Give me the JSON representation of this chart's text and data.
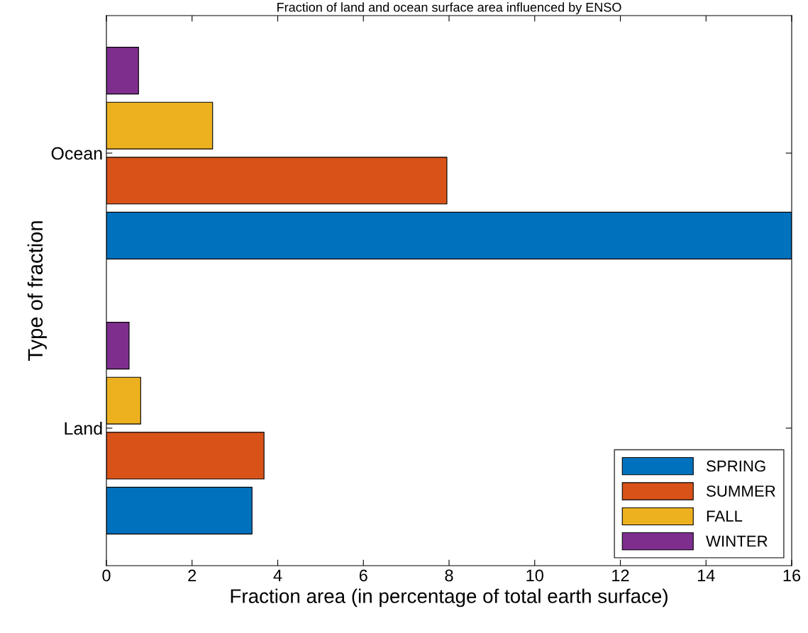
{
  "chart_data": {
    "type": "bar",
    "orientation": "horizontal",
    "title": "Fraction of land and ocean surface area influenced by ENSO",
    "xlabel": "Fraction area (in percentage of total earth surface)",
    "ylabel": "Type of fraction",
    "categories": [
      "Ocean",
      "Land"
    ],
    "series": [
      {
        "name": "SPRING",
        "color": "#0072bd",
        "values": [
          16.0,
          3.4
        ]
      },
      {
        "name": "SUMMER",
        "color": "#d95319",
        "values": [
          7.95,
          3.68
        ]
      },
      {
        "name": "FALL",
        "color": "#edb120",
        "values": [
          2.48,
          0.8
        ]
      },
      {
        "name": "WINTER",
        "color": "#7e2f8e",
        "values": [
          0.75,
          0.53
        ]
      }
    ],
    "xlim": [
      0,
      16
    ],
    "xticks": [
      0,
      2,
      4,
      6,
      8,
      10,
      12,
      14,
      16
    ],
    "grid": false,
    "legend": "bottom right"
  }
}
